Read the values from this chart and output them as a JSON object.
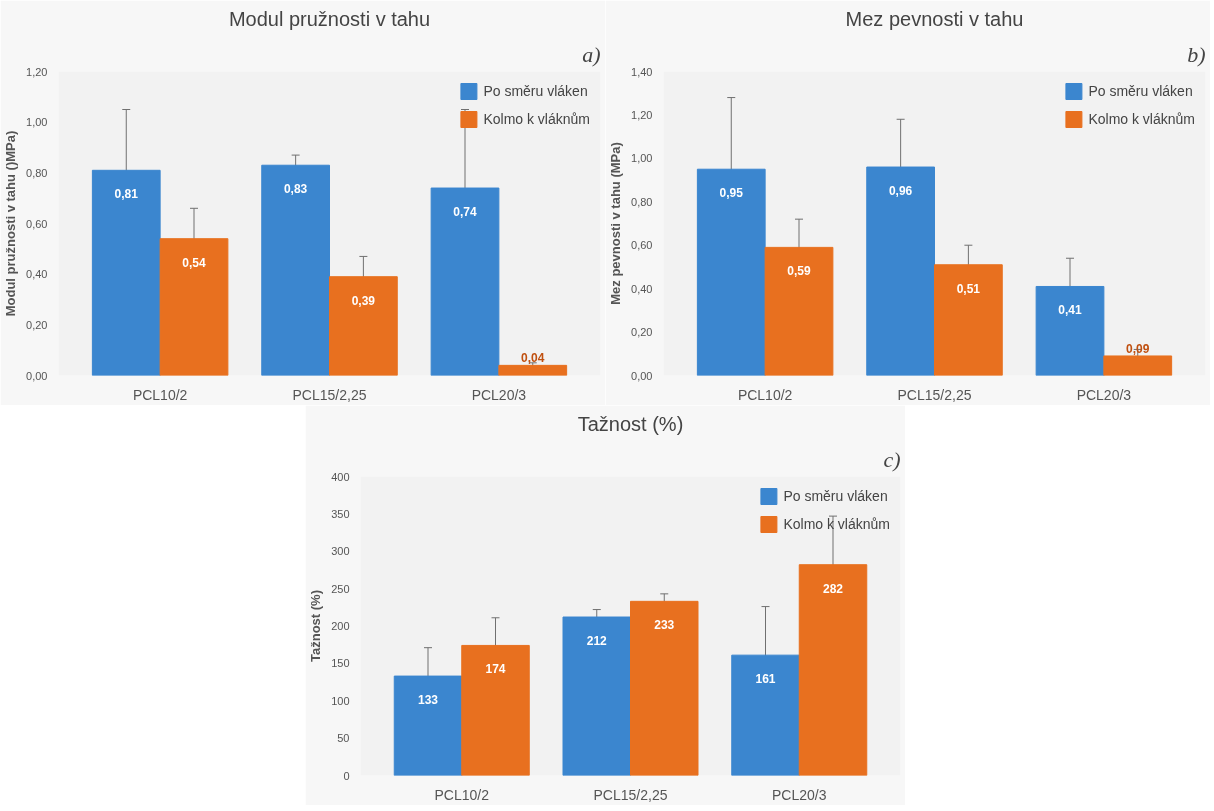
{
  "chart_data": [
    {
      "type": "bar",
      "title": "Modul pružnosti v tahu",
      "ylabel": "Modul pružnosti v tahu ()MPa)",
      "annotations": [
        "a)"
      ],
      "categories": [
        "PCL10/2",
        "PCL15/2,25",
        "PCL20/3"
      ],
      "series": [
        {
          "name": "Po směru vláken",
          "color": "#3b86cf",
          "values": [
            0.81,
            0.83,
            0.74
          ],
          "errors": [
            0.24,
            0.04,
            0.31
          ],
          "value_labels": [
            "0,81",
            "0,83",
            "0,74"
          ]
        },
        {
          "name": "Kolmo k vláknům",
          "color": "#e8701f",
          "values": [
            0.54,
            0.39,
            0.04
          ],
          "errors": [
            0.12,
            0.08,
            0.01
          ],
          "value_labels": [
            "0,54",
            "0,39",
            "0,04"
          ]
        }
      ],
      "ylim": [
        0,
        1.2
      ],
      "yticks": [
        {
          "value": 0,
          "label": "0,00"
        },
        {
          "value": 0.2,
          "label": "0,20"
        },
        {
          "value": 0.4,
          "label": "0,40"
        },
        {
          "value": 0.6,
          "label": "0,60"
        },
        {
          "value": 0.8,
          "label": "0,80"
        },
        {
          "value": 1.0,
          "label": "1,00"
        },
        {
          "value": 1.2,
          "label": "1,20"
        }
      ],
      "grid": false,
      "legend": "top right"
    },
    {
      "type": "bar",
      "title": "Mez pevnosti v tahu",
      "ylabel": "Mez pevnosti v tahu (MPa)",
      "annotations": [
        "b)"
      ],
      "categories": [
        "PCL10/2",
        "PCL15/2,25",
        "PCL20/3"
      ],
      "series": [
        {
          "name": "Po směru vláken",
          "color": "#3b86cf",
          "values": [
            0.95,
            0.96,
            0.41
          ],
          "errors": [
            0.33,
            0.22,
            0.13
          ],
          "value_labels": [
            "0,95",
            "0,96",
            "0,41"
          ]
        },
        {
          "name": "Kolmo k vláknům",
          "color": "#e8701f",
          "values": [
            0.59,
            0.51,
            0.09
          ],
          "errors": [
            0.13,
            0.09,
            0.03
          ],
          "value_labels": [
            "0,59",
            "0,51",
            "0,09"
          ]
        }
      ],
      "ylim": [
        0,
        1.4
      ],
      "yticks": [
        {
          "value": 0,
          "label": "0,00"
        },
        {
          "value": 0.2,
          "label": "0,20"
        },
        {
          "value": 0.4,
          "label": "0,40"
        },
        {
          "value": 0.6,
          "label": "0,60"
        },
        {
          "value": 0.8,
          "label": "0,80"
        },
        {
          "value": 1.0,
          "label": "1,00"
        },
        {
          "value": 1.2,
          "label": "1,20"
        },
        {
          "value": 1.4,
          "label": "1,40"
        }
      ],
      "grid": false,
      "legend": "top right"
    },
    {
      "type": "bar",
      "title": "Tažnost (%)",
      "ylabel": "Tažnost (%)",
      "annotations": [
        "c)"
      ],
      "categories": [
        "PCL10/2",
        "PCL15/2,25",
        "PCL20/3"
      ],
      "series": [
        {
          "name": "Po směru vláken",
          "color": "#3b86cf",
          "values": [
            133,
            212,
            161
          ],
          "errors": [
            38,
            10,
            65
          ]
        },
        {
          "name": "Kolmo k vláknům",
          "color": "#e8701f",
          "values": [
            174,
            233,
            282
          ],
          "errors": [
            37,
            10,
            65
          ]
        }
      ],
      "data_labels": true,
      "ylim": [
        0,
        400
      ],
      "yticks": [
        0,
        50,
        100,
        150,
        200,
        250,
        300,
        350,
        400
      ],
      "grid": false,
      "legend": "top right"
    }
  ]
}
